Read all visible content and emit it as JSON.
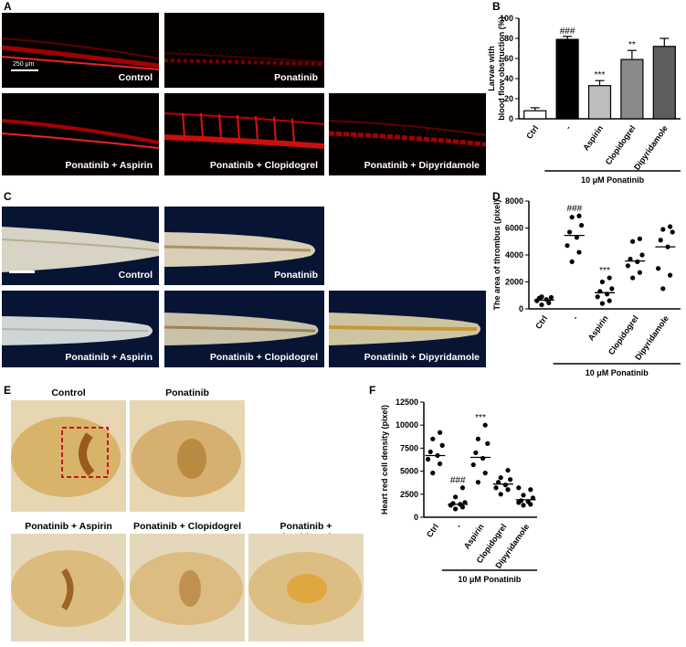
{
  "panels": {
    "A": {
      "label": "A",
      "images": [
        {
          "caption": "Control"
        },
        {
          "caption": "Ponatinib"
        },
        {
          "caption": "Ponatinib + Aspirin"
        },
        {
          "caption": "Ponatinib + Clopidogrel"
        },
        {
          "caption": "Ponatinib + Dipyridamole"
        }
      ],
      "scale_bar": "250 μm"
    },
    "B": {
      "label": "B"
    },
    "C": {
      "label": "C",
      "images": [
        {
          "caption": "Control"
        },
        {
          "caption": "Ponatinib"
        },
        {
          "caption": "Ponatinib + Aspirin"
        },
        {
          "caption": "Ponatinib + Clopidogrel"
        },
        {
          "caption": "Ponatinib + Dipyridamole"
        }
      ]
    },
    "D": {
      "label": "D"
    },
    "E": {
      "label": "E",
      "images": [
        {
          "caption": "Control"
        },
        {
          "caption": "Ponatinib"
        },
        {
          "caption": "Ponatinib + Aspirin"
        },
        {
          "caption": "Ponatinib + Clopidogrel"
        },
        {
          "caption": "Ponatinib + Dipyridamole"
        }
      ]
    },
    "F": {
      "label": "F"
    }
  },
  "chart_data": [
    {
      "panel": "B",
      "type": "bar",
      "categories": [
        "Ctrl",
        "-",
        "Aspirin",
        "Clopidogrel",
        "Dipyridamole"
      ],
      "values": [
        8,
        79,
        33,
        59,
        72
      ],
      "errors": [
        3,
        3,
        5,
        9,
        8
      ],
      "significance": [
        "",
        "###",
        "***",
        "**",
        ""
      ],
      "bar_colors": [
        "#ffffff",
        "#000000",
        "#bdbdbd",
        "#8a8a8a",
        "#5e5e5e"
      ],
      "ylabel_line1": "Larvae with",
      "ylabel_line2": "blood flow obstruction  (%)",
      "ylim": [
        0,
        100
      ],
      "yticks": [
        "0",
        "20",
        "40",
        "60",
        "80",
        "100"
      ],
      "group_label": "10 μM Ponatinib"
    },
    {
      "panel": "D",
      "type": "scatter",
      "categories": [
        "Ctrl",
        "-",
        "Aspirin",
        "Clopidogrel",
        "Dipyridamole"
      ],
      "points": [
        [
          300,
          450,
          600,
          700,
          800,
          850,
          900
        ],
        [
          3500,
          4200,
          4700,
          5300,
          5700,
          6200,
          6800,
          6900
        ],
        [
          400,
          600,
          900,
          1100,
          1300,
          1500,
          2000,
          2300
        ],
        [
          2300,
          2700,
          3200,
          3500,
          3700,
          4000,
          5000,
          5200
        ],
        [
          1500,
          2500,
          3000,
          4600,
          5100,
          5700,
          5900,
          6100
        ]
      ],
      "means": [
        650,
        5450,
        1200,
        3550,
        4600
      ],
      "significance": [
        "",
        "###",
        "***",
        "",
        ""
      ],
      "ylabel": "The area of thrombus (pixel)",
      "ylim": [
        0,
        8000
      ],
      "yticks": [
        "0",
        "2000",
        "4000",
        "6000",
        "8000"
      ],
      "group_label": "10 μM Ponatinib"
    },
    {
      "panel": "F",
      "type": "scatter",
      "categories": [
        "Ctrl",
        "-",
        "Aspirin",
        "Clopidogrel",
        "Dipyridamole"
      ],
      "points": [
        [
          4800,
          5800,
          6300,
          6700,
          7100,
          7800,
          8500,
          9200
        ],
        [
          900,
          1100,
          1300,
          1400,
          1500,
          1600,
          2200,
          3200
        ],
        [
          3800,
          4800,
          5700,
          6400,
          7000,
          8000,
          8500,
          10000
        ],
        [
          2500,
          3000,
          3200,
          3500,
          3800,
          4100,
          4300,
          5100
        ],
        [
          1300,
          1400,
          1600,
          1700,
          1800,
          2100,
          2400,
          3000,
          3200
        ]
      ],
      "means": [
        6700,
        1400,
        6500,
        3600,
        1900
      ],
      "significance": [
        "",
        "###",
        "***",
        "",
        ""
      ],
      "ylabel": "Heart red cell density (pixel)",
      "ylim": [
        0,
        12500
      ],
      "yticks": [
        "0",
        "2500",
        "5000",
        "7500",
        "10000",
        "12500"
      ],
      "group_label": "10 μM Ponatinib"
    }
  ]
}
